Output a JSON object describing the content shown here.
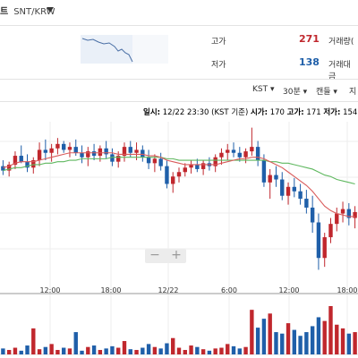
{
  "header": {
    "coin_short": "트",
    "symbol": "SNT/KRW"
  },
  "info": {
    "high_label": "고가",
    "high_value": "271",
    "low_label": "저가",
    "low_value": "138",
    "volume_label": "거래량(",
    "amount_label": "거래대금"
  },
  "toolbar": {
    "tz": "KST",
    "interval": "30분",
    "candle": "캔들",
    "more": "지"
  },
  "chart_info": {
    "prefix": "일시:",
    "datetime": "12/22 23:30 (KST 기준)",
    "open_label": "시가:",
    "open": "170",
    "high_label": "고가:",
    "high": "171",
    "low_label": "저가:",
    "low": "154"
  },
  "zoom": {
    "minus": "−",
    "plus": "+"
  },
  "colors": {
    "up": "#c0272d",
    "down": "#1f5fa9",
    "ma1": "#d95b5b",
    "ma2": "#5fb85f"
  },
  "chart_data": {
    "type": "candlestick",
    "x_ticks": [
      "12:00",
      "18:00",
      "12/22",
      "6:00",
      "12:00",
      "18:00"
    ],
    "candles": [
      [
        210,
        214,
        204,
        207
      ],
      [
        207,
        213,
        203,
        211
      ],
      [
        211,
        220,
        208,
        217
      ],
      [
        217,
        224,
        212,
        213
      ],
      [
        213,
        218,
        206,
        209
      ],
      [
        209,
        216,
        205,
        214
      ],
      [
        214,
        226,
        210,
        221
      ],
      [
        221,
        228,
        214,
        219
      ],
      [
        219,
        225,
        213,
        222
      ],
      [
        222,
        229,
        218,
        225
      ],
      [
        225,
        227,
        219,
        221
      ],
      [
        221,
        226,
        216,
        223
      ],
      [
        223,
        228,
        217,
        219
      ],
      [
        219,
        224,
        212,
        216
      ],
      [
        216,
        223,
        210,
        220
      ],
      [
        220,
        225,
        214,
        217
      ],
      [
        217,
        224,
        213,
        222
      ],
      [
        222,
        227,
        215,
        218
      ],
      [
        218,
        222,
        210,
        213
      ],
      [
        213,
        220,
        209,
        217
      ],
      [
        217,
        226,
        213,
        223
      ],
      [
        223,
        227,
        216,
        219
      ],
      [
        219,
        226,
        214,
        221
      ],
      [
        221,
        224,
        213,
        216
      ],
      [
        216,
        221,
        208,
        212
      ],
      [
        212,
        218,
        206,
        215
      ],
      [
        215,
        219,
        207,
        210
      ],
      [
        210,
        214,
        195,
        198
      ],
      [
        198,
        206,
        192,
        203
      ],
      [
        203,
        209,
        199,
        206
      ],
      [
        206,
        212,
        203,
        209
      ],
      [
        209,
        214,
        205,
        211
      ],
      [
        211,
        215,
        206,
        208
      ],
      [
        208,
        214,
        204,
        212
      ],
      [
        212,
        216,
        207,
        210
      ],
      [
        210,
        218,
        206,
        216
      ],
      [
        216,
        222,
        211,
        219
      ],
      [
        219,
        225,
        214,
        221
      ],
      [
        221,
        226,
        216,
        219
      ],
      [
        219,
        223,
        213,
        216
      ],
      [
        216,
        222,
        212,
        220
      ],
      [
        220,
        236,
        217,
        223
      ],
      [
        223,
        227,
        210,
        214
      ],
      [
        214,
        218,
        196,
        199
      ],
      [
        199,
        208,
        188,
        204
      ],
      [
        204,
        210,
        196,
        201
      ],
      [
        201,
        206,
        187,
        190
      ],
      [
        190,
        199,
        184,
        196
      ],
      [
        196,
        202,
        189,
        193
      ],
      [
        193,
        198,
        184,
        188
      ],
      [
        188,
        194,
        178,
        182
      ],
      [
        182,
        190,
        165,
        172
      ],
      [
        172,
        178,
        140,
        148
      ],
      [
        148,
        165,
        142,
        162
      ],
      [
        162,
        175,
        158,
        171
      ],
      [
        171,
        182,
        166,
        178
      ],
      [
        178,
        186,
        172,
        181
      ],
      [
        181,
        185,
        170,
        175
      ],
      [
        175,
        183,
        168,
        179
      ]
    ],
    "ma_fast": [
      209,
      210,
      212,
      213,
      213,
      213,
      214,
      215,
      216,
      217,
      218,
      219,
      219,
      219,
      219,
      219,
      219,
      219,
      219,
      218,
      218,
      218,
      218,
      218,
      217,
      217,
      216,
      214,
      213,
      212,
      211,
      211,
      211,
      211,
      211,
      211,
      212,
      213,
      214,
      215,
      215,
      216,
      216,
      215,
      213,
      211,
      209,
      206,
      203,
      200,
      197,
      193,
      188,
      183,
      180,
      178,
      177,
      176,
      176
    ],
    "ma_slow": [
      207,
      208,
      209,
      209,
      210,
      211,
      211,
      212,
      212,
      213,
      213,
      214,
      214,
      215,
      215,
      215,
      215,
      215,
      216,
      216,
      216,
      216,
      216,
      216,
      216,
      216,
      216,
      215,
      215,
      214,
      214,
      214,
      214,
      214,
      214,
      214,
      214,
      214,
      214,
      214,
      214,
      214,
      214,
      214,
      213,
      213,
      212,
      212,
      211,
      210,
      209,
      208,
      206,
      204,
      203,
      201,
      200,
      199,
      198
    ],
    "volumes": [
      8,
      6,
      9,
      5,
      12,
      35,
      7,
      10,
      14,
      6,
      9,
      8,
      30,
      5,
      10,
      12,
      6,
      8,
      11,
      9,
      18,
      7,
      6,
      9,
      14,
      10,
      8,
      15,
      22,
      9,
      6,
      12,
      10,
      7,
      5,
      8,
      9,
      14,
      11,
      8,
      10,
      60,
      36,
      48,
      55,
      30,
      28,
      42,
      33,
      25,
      30,
      38,
      50,
      45,
      65,
      40,
      35,
      28,
      30
    ],
    "ylim": [
      130,
      240
    ],
    "grid": true
  }
}
